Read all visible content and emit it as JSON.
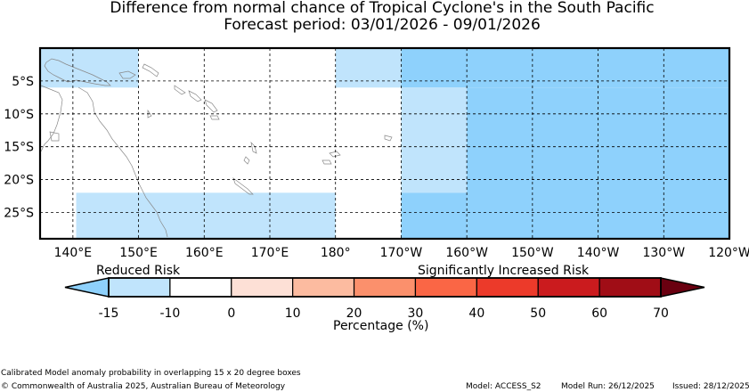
{
  "title": "Difference from normal chance of Tropical Cyclone's in the South Pacific",
  "subtitle": "Forecast period: 03/01/2026 - 09/01/2026",
  "map": {
    "lon_range": [
      135,
      240
    ],
    "lat_range": [
      0,
      -29
    ],
    "lon_gridlines": [
      140,
      150,
      160,
      170,
      180,
      190,
      200,
      210,
      220,
      230
    ],
    "lat_gridlines": [
      -5,
      -10,
      -15,
      -20,
      -25
    ],
    "x_tick_labels": [
      {
        "lon": 140,
        "label": "140°E"
      },
      {
        "lon": 150,
        "label": "150°E"
      },
      {
        "lon": 160,
        "label": "160°E"
      },
      {
        "lon": 170,
        "label": "170°E"
      },
      {
        "lon": 180,
        "label": "180°"
      },
      {
        "lon": 190,
        "label": "170°W"
      },
      {
        "lon": 200,
        "label": "160°W"
      },
      {
        "lon": 210,
        "label": "150°W"
      },
      {
        "lon": 220,
        "label": "140°W"
      },
      {
        "lon": 230,
        "label": "130°W"
      },
      {
        "lon": 240,
        "label": "120°W"
      }
    ],
    "y_tick_labels": [
      {
        "lat": -5,
        "label": "5°S"
      },
      {
        "lat": -10,
        "label": "10°S"
      },
      {
        "lat": -15,
        "label": "15°S"
      },
      {
        "lat": -20,
        "label": "20°S"
      },
      {
        "lat": -25,
        "label": "25°S"
      }
    ],
    "regions": [
      {
        "lon": [
          135,
          150
        ],
        "lat": [
          0,
          -6
        ],
        "color": "#c0e4fc"
      },
      {
        "lon": [
          140.5,
          180
        ],
        "lat": [
          -22,
          -29
        ],
        "color": "#c0e4fc"
      },
      {
        "lon": [
          180,
          190
        ],
        "lat": [
          0,
          -6
        ],
        "color": "#c0e4fc"
      },
      {
        "lon": [
          190,
          240
        ],
        "lat": [
          0,
          -6
        ],
        "color": "#8ed1fc"
      },
      {
        "lon": [
          190,
          200
        ],
        "lat": [
          -6,
          -22
        ],
        "color": "#c0e4fc"
      },
      {
        "lon": [
          200,
          240
        ],
        "lat": [
          -6,
          -29
        ],
        "color": "#8ed1fc"
      },
      {
        "lon": [
          190,
          200
        ],
        "lat": [
          -22,
          -29
        ],
        "color": "#8ed1fc"
      }
    ]
  },
  "legend": {
    "reduced_label": "Reduced Risk",
    "increased_label": "Significantly Increased Risk",
    "title": "Percentage (%)",
    "boundaries": [
      "-15",
      "-10",
      "0",
      "10",
      "20",
      "30",
      "40",
      "50",
      "60",
      "70"
    ],
    "under_color": "#8ed1fc",
    "over_color": "#6a0010",
    "colors": [
      "#c0e4fc",
      "#ffffff",
      "#fde0d6",
      "#fcbba0",
      "#fb906c",
      "#fa6645",
      "#ec3a2a",
      "#cb1b1e",
      "#a00d16"
    ]
  },
  "footer": {
    "note": "Calibrated Model anomaly probability in overlapping 15 x 20 degree boxes",
    "copyright": "© Commonwealth of Australia 2025, Australian Bureau of Meteorology",
    "model": "Model: ACCESS_S2",
    "model_run": "Model Run: 26/12/2025",
    "issued": "Issued: 28/12/2025"
  }
}
